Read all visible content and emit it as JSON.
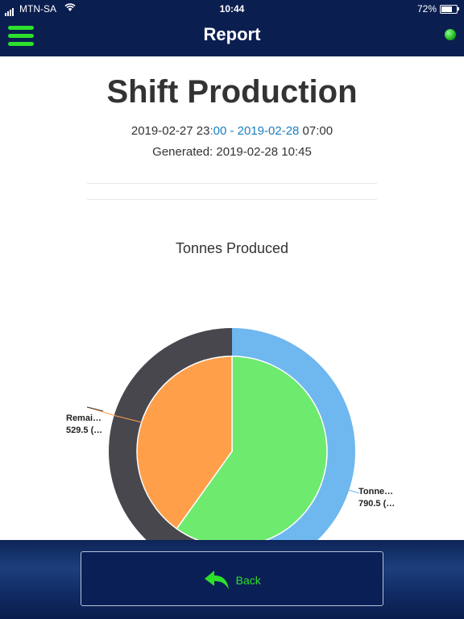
{
  "statusbar": {
    "carrier": "MTN-SA",
    "time": "10:44",
    "battery_pct": "72%",
    "battery_level": 0.72,
    "icons": [
      "signal-icon",
      "wifi-icon",
      "battery-icon"
    ]
  },
  "navbar": {
    "title": "Report",
    "menu_icon": "hamburger-menu-icon",
    "status_indicator_color": "#2ce02c"
  },
  "report": {
    "title": "Shift Production",
    "range_start_a": "2019-02-27 23",
    "range_start_b": ":00 - 2019-02-28",
    "range_end": " 07:00",
    "generated": "Generated: 2019-02-28 10:45"
  },
  "chart_data": {
    "type": "pie",
    "title": "Tonnes Produced",
    "inner_series": [
      {
        "label": "Tonnes produced",
        "value": 790.5,
        "color": "#6eea6e"
      },
      {
        "label": "Remaining",
        "value": 529.5,
        "color": "#ff9f4a"
      }
    ],
    "outer_series": [
      {
        "value": 1,
        "color": "#6fb7ef"
      },
      {
        "value": 1,
        "color": "#47474d"
      }
    ],
    "labels": {
      "right_name": "Tonne…",
      "right_value": "790.5 (…",
      "left_name": "Remai…",
      "left_value": "529.5 (…"
    }
  },
  "footer": {
    "back_label": "Back",
    "back_icon": "back-arrow-icon",
    "accent": "#2ce02c"
  }
}
